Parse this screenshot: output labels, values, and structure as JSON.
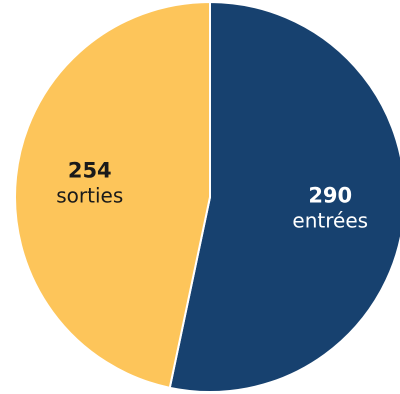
{
  "chart_data": {
    "type": "pie",
    "title": "",
    "slices": [
      {
        "label": "entrées",
        "value": 290,
        "color": "#17416f",
        "text_color": "#ffffff"
      },
      {
        "label": "sorties",
        "value": 254,
        "color": "#fdc55a",
        "text_color": "#1a1a1a"
      }
    ],
    "start_angle_deg": 0,
    "direction": "clockwise",
    "slice_border_color": "#ffffff",
    "legend": "none"
  }
}
